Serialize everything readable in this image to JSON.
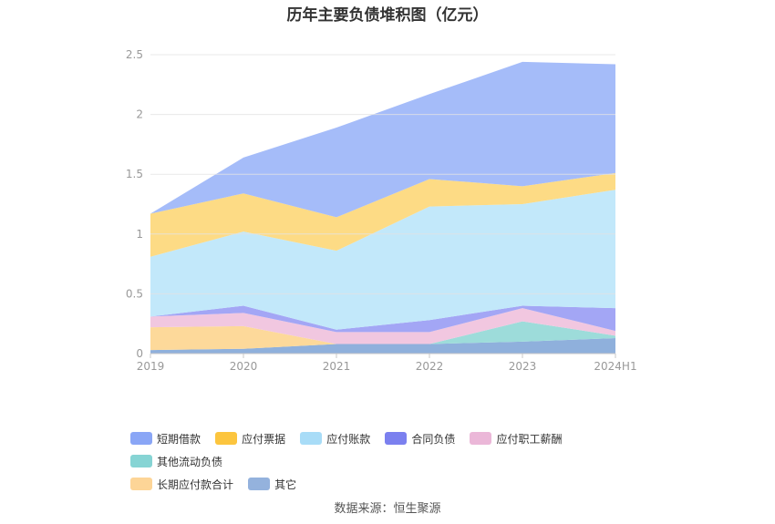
{
  "title": "历年主要负债堆积图（亿元）",
  "source": "数据来源：恒生聚源",
  "chart_data": {
    "type": "area",
    "stacked": true,
    "categories": [
      "2019",
      "2020",
      "2021",
      "2022",
      "2023",
      "2024H1"
    ],
    "ylim": [
      0,
      2.5
    ],
    "yticks": [
      "0",
      "0.5",
      "1",
      "1.5",
      "2",
      "2.5"
    ],
    "grid": true,
    "legend_position": "bottom",
    "series": [
      {
        "name": "其它",
        "color": "#8fb0dc",
        "values": [
          0.03,
          0.04,
          0.08,
          0.08,
          0.1,
          0.13
        ]
      },
      {
        "name": "长期应付款合计",
        "color": "#fdd99a",
        "values": [
          0.19,
          0.19,
          0.0,
          0.0,
          0.0,
          0.0
        ]
      },
      {
        "name": "其他流动负债",
        "color": "#9ddcda",
        "values": [
          0.0,
          0.0,
          0.0,
          0.0,
          0.17,
          0.02
        ]
      },
      {
        "name": "应付职工薪酬",
        "color": "#f1c7e0",
        "values": [
          0.09,
          0.11,
          0.1,
          0.1,
          0.11,
          0.04
        ]
      },
      {
        "name": "合同负债",
        "color": "#a3a6f5",
        "values": [
          0.0,
          0.06,
          0.02,
          0.1,
          0.02,
          0.19
        ]
      },
      {
        "name": "应付账款",
        "color": "#c2e8fa",
        "values": [
          0.5,
          0.62,
          0.66,
          0.95,
          0.85,
          0.99
        ]
      },
      {
        "name": "应付票据",
        "color": "#fddb85",
        "values": [
          0.36,
          0.32,
          0.28,
          0.23,
          0.15,
          0.14
        ]
      },
      {
        "name": "短期借款",
        "color": "#a5bcf9",
        "values": [
          0.0,
          0.3,
          0.75,
          0.71,
          1.04,
          0.91
        ]
      }
    ]
  },
  "legend": [
    {
      "label": "短期借款",
      "color": "#8aa6f6"
    },
    {
      "label": "应付票据",
      "color": "#fcc53e"
    },
    {
      "label": "应付账款",
      "color": "#a8dcf7"
    },
    {
      "label": "合同负债",
      "color": "#7b80ef"
    },
    {
      "label": "应付职工薪酬",
      "color": "#ebb7d8"
    },
    {
      "label": "其他流动负债",
      "color": "#86d4d4"
    },
    {
      "label": "长期应付款合计",
      "color": "#fdd597"
    },
    {
      "label": "其它",
      "color": "#94b2dd"
    }
  ]
}
